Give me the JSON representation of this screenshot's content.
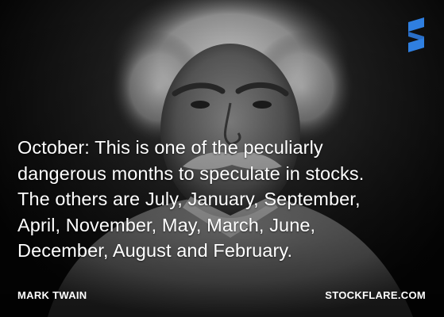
{
  "quote": {
    "text": "October: This is one of the peculiarly dangerous months to speculate in stocks. The others are July, January, September, April, November, May, March, June, December, August and February.",
    "lines": [
      "October: This is one of the peculiarly",
      "dangerous months to speculate in stocks.",
      "The others are July, January, September,",
      "April, November, May, March, June,",
      "December, August and February."
    ]
  },
  "author": "MARK TWAIN",
  "brand": "STOCKFLARE.COM",
  "logo": {
    "icon": "stockflare-s-logo",
    "color": "#2f7fe0"
  },
  "colors": {
    "text": "#ffffff",
    "background": "#0a0a0a"
  }
}
